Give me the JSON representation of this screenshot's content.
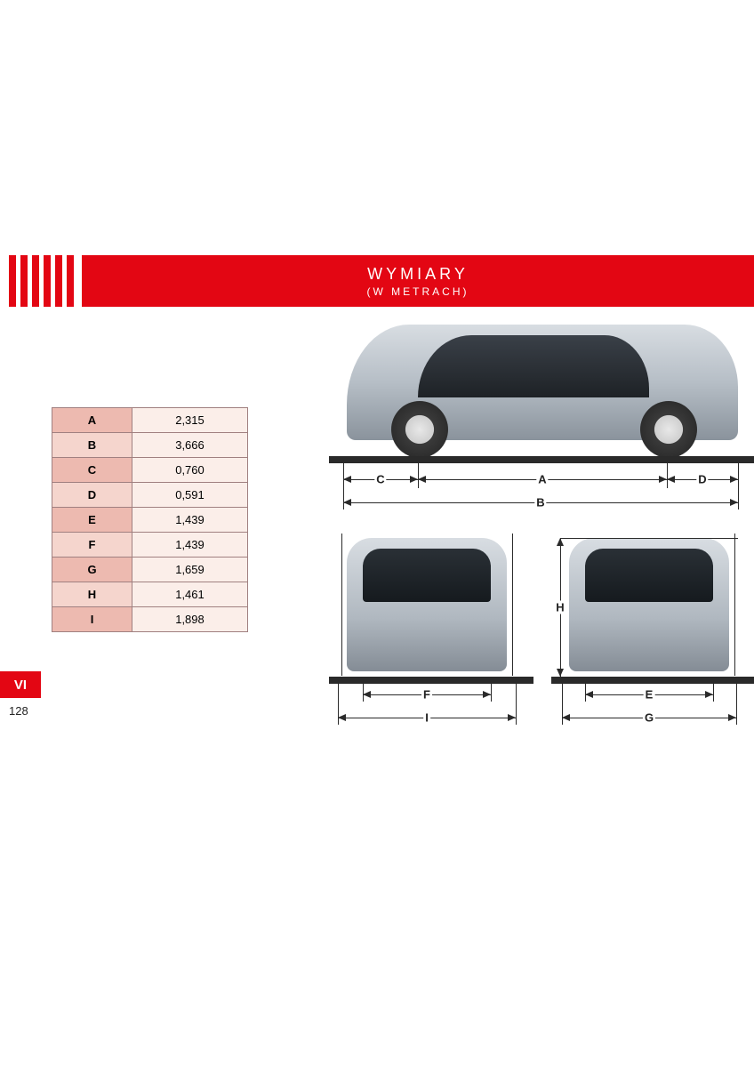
{
  "header": {
    "title": "WYMIARY",
    "subtitle": "(W METRACH)",
    "band_color": "#e30613",
    "text_color": "#ffffff",
    "stripe_colors": [
      "#e30613",
      "#e30613",
      "#e30613",
      "#e30613",
      "#e30613",
      "#e30613"
    ]
  },
  "dimensions_table": {
    "header_bg_dark": "#edbab0",
    "header_bg_light": "#f5d5cd",
    "value_bg": "#fbeee9",
    "border_color": "#a08080",
    "rows": [
      {
        "letter": "A",
        "value": "2,315"
      },
      {
        "letter": "B",
        "value": "3,666"
      },
      {
        "letter": "C",
        "value": "0,760"
      },
      {
        "letter": "D",
        "value": "0,591"
      },
      {
        "letter": "E",
        "value": "1,439"
      },
      {
        "letter": "F",
        "value": "1,439"
      },
      {
        "letter": "G",
        "value": "1,659"
      },
      {
        "letter": "H",
        "value": "1,461"
      },
      {
        "letter": "I",
        "value": "1,898"
      }
    ]
  },
  "diagram": {
    "side_labels": {
      "C": "C",
      "A": "A",
      "D": "D",
      "B": "B"
    },
    "front_labels": {
      "F": "F",
      "I": "I"
    },
    "rear_labels": {
      "H": "H",
      "E": "E",
      "G": "G"
    }
  },
  "chapter": {
    "label": "VI"
  },
  "page_number": "128"
}
